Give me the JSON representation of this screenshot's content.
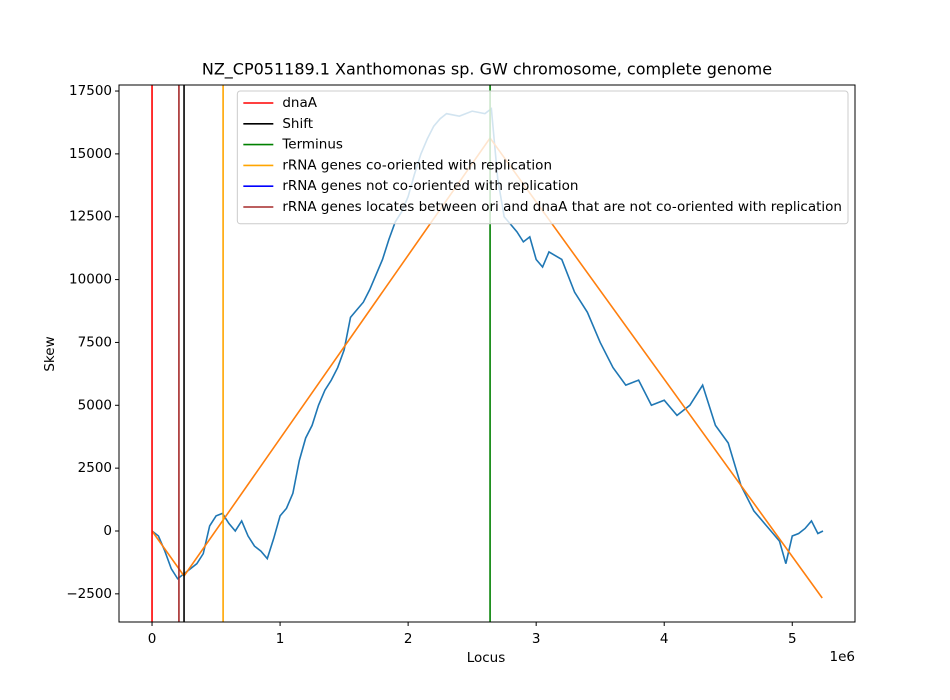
{
  "chart_data": {
    "type": "line",
    "title": "NZ_CP051189.1 Xanthomonas sp. GW chromosome, complete genome",
    "x_label": "Locus",
    "y_label": "Skew",
    "x_offset_label": "1e6",
    "xlim": [
      -258000,
      5490000
    ],
    "ylim": [
      -3620,
      17740
    ],
    "xticks": [
      {
        "value": 0,
        "label": "0"
      },
      {
        "value": 1000000,
        "label": "1"
      },
      {
        "value": 2000000,
        "label": "2"
      },
      {
        "value": 3000000,
        "label": "3"
      },
      {
        "value": 4000000,
        "label": "4"
      },
      {
        "value": 5000000,
        "label": "5"
      }
    ],
    "yticks": [
      {
        "value": -2500,
        "label": "−2500"
      },
      0,
      2500,
      5000,
      7500,
      10000,
      12500,
      15000,
      17500
    ],
    "series": [
      {
        "color": "#1f77b4",
        "x": [
          0,
          50000,
          100000,
          150000,
          200000,
          250000,
          300000,
          350000,
          400000,
          450000,
          500000,
          550000,
          600000,
          650000,
          700000,
          750000,
          800000,
          850000,
          900000,
          950000,
          1000000,
          1050000,
          1100000,
          1150000,
          1200000,
          1250000,
          1300000,
          1350000,
          1400000,
          1450000,
          1500000,
          1550000,
          1600000,
          1650000,
          1700000,
          1750000,
          1800000,
          1850000,
          1900000,
          1950000,
          2000000,
          2050000,
          2100000,
          2150000,
          2200000,
          2250000,
          2300000,
          2400000,
          2500000,
          2600000,
          2650000,
          2700000,
          2750000,
          2800000,
          2850000,
          2900000,
          2950000,
          3000000,
          3050000,
          3100000,
          3200000,
          3300000,
          3400000,
          3500000,
          3600000,
          3700000,
          3800000,
          3900000,
          4000000,
          4100000,
          4200000,
          4300000,
          4400000,
          4500000,
          4600000,
          4700000,
          4800000,
          4850000,
          4900000,
          4950000,
          5000000,
          5050000,
          5100000,
          5150000,
          5200000,
          5240000
        ],
        "values": [
          0,
          -200,
          -800,
          -1500,
          -1900,
          -1700,
          -1500,
          -1300,
          -900,
          200,
          600,
          700,
          300,
          0,
          400,
          -200,
          -600,
          -800,
          -1100,
          -300,
          600,
          900,
          1500,
          2800,
          3700,
          4200,
          5000,
          5600,
          6000,
          6500,
          7200,
          8500,
          8800,
          9100,
          9600,
          10200,
          10800,
          11600,
          12300,
          12700,
          13300,
          14200,
          15000,
          15600,
          16100,
          16400,
          16600,
          16500,
          16700,
          16600,
          16800,
          14000,
          12500,
          12200,
          11900,
          11500,
          11700,
          10800,
          10500,
          11100,
          10800,
          9500,
          8700,
          7500,
          6500,
          5800,
          6000,
          5000,
          5200,
          4600,
          5000,
          5800,
          4200,
          3500,
          1800,
          800,
          200,
          -100,
          -400,
          -1300,
          -200,
          -100,
          100,
          400,
          -100,
          0
        ]
      },
      {
        "color": "#ff7f0e",
        "x": [
          0,
          250000,
          2640000,
          5234000
        ],
        "values": [
          0,
          -1790,
          15630,
          -2665
        ]
      }
    ],
    "markers": [
      {
        "name": "dnaA",
        "color": "red",
        "x": [
          0
        ]
      },
      {
        "name": "Shift",
        "color": "black",
        "x": [
          250000
        ]
      },
      {
        "name": "Terminus",
        "color": "green",
        "x": [
          2640000
        ]
      },
      {
        "name": "rRNA genes co-oriented with replication",
        "color": "orange",
        "x": [
          555000
        ]
      },
      {
        "name": "rRNA genes not co-oriented with replication",
        "color": "blue",
        "x": []
      },
      {
        "name": "rRNA genes locates between ori and dnaA that are not co-oriented with replication",
        "color": "brown",
        "x": [
          210000
        ]
      }
    ],
    "legend": "upper right"
  }
}
